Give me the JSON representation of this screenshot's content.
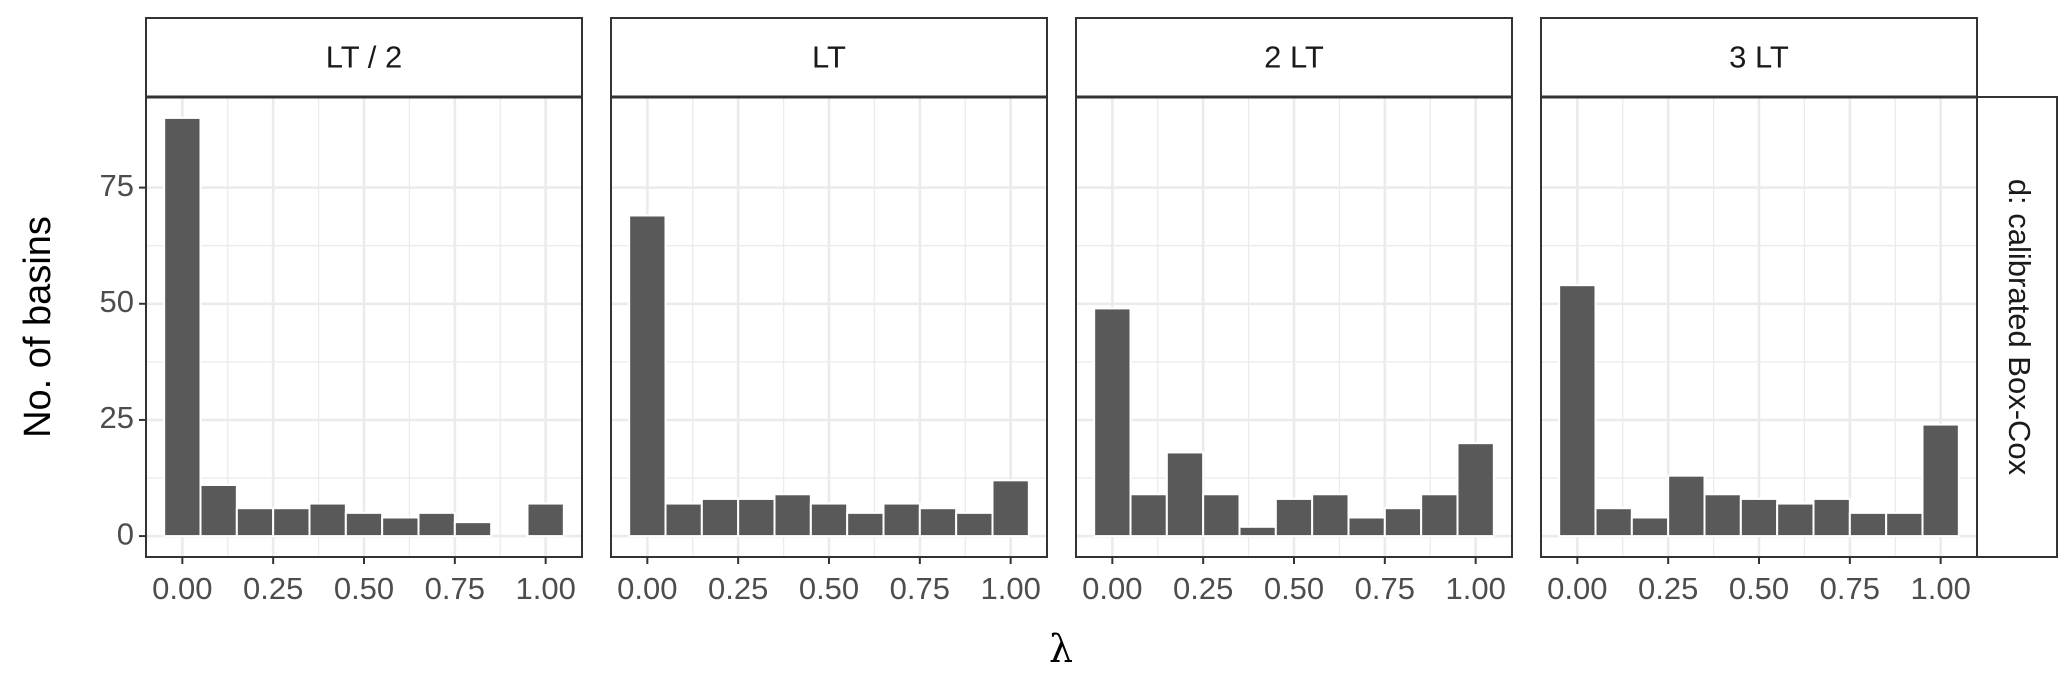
{
  "figure": {
    "ylabel": "No. of basins",
    "xlabel": "λ",
    "row_strip": "d: calibrated Box-Cox"
  },
  "chart_data": [
    {
      "type": "histogram",
      "title": "LT / 2",
      "bins": [
        -0.05,
        0.05,
        0.15,
        0.25,
        0.35,
        0.45,
        0.55,
        0.65,
        0.75,
        0.85,
        0.95,
        1.05
      ],
      "values": [
        90,
        11,
        6,
        6,
        7,
        5,
        4,
        5,
        3,
        0,
        7
      ],
      "color": "#595959",
      "xlim": [
        -0.1,
        1.1
      ],
      "ylim": [
        -4.5,
        94.5
      ],
      "xticks": [
        {
          "value": 0,
          "label": "0.00"
        },
        {
          "value": 0.25,
          "label": "0.25"
        },
        {
          "value": 0.5,
          "label": "0.50"
        },
        {
          "value": 0.75,
          "label": "0.75"
        },
        {
          "value": 1,
          "label": "1.00"
        }
      ],
      "yticks": [
        0,
        25,
        50,
        75
      ],
      "grid": true
    },
    {
      "type": "histogram",
      "title": "LT",
      "bins": [
        -0.05,
        0.05,
        0.15,
        0.25,
        0.35,
        0.45,
        0.55,
        0.65,
        0.75,
        0.85,
        0.95,
        1.05
      ],
      "values": [
        69,
        7,
        8,
        8,
        9,
        7,
        5,
        7,
        6,
        5,
        12
      ],
      "color": "#595959",
      "xlim": [
        -0.1,
        1.1
      ],
      "ylim": [
        -4.5,
        94.5
      ],
      "xticks": [
        {
          "value": 0,
          "label": "0.00"
        },
        {
          "value": 0.25,
          "label": "0.25"
        },
        {
          "value": 0.5,
          "label": "0.50"
        },
        {
          "value": 0.75,
          "label": "0.75"
        },
        {
          "value": 1,
          "label": "1.00"
        }
      ],
      "yticks": [
        0,
        25,
        50,
        75
      ],
      "grid": true
    },
    {
      "type": "histogram",
      "title": "2 LT",
      "bins": [
        -0.05,
        0.05,
        0.15,
        0.25,
        0.35,
        0.45,
        0.55,
        0.65,
        0.75,
        0.85,
        0.95,
        1.05
      ],
      "values": [
        49,
        9,
        18,
        9,
        2,
        8,
        9,
        4,
        6,
        9,
        20
      ],
      "color": "#595959",
      "xlim": [
        -0.1,
        1.1
      ],
      "ylim": [
        -4.5,
        94.5
      ],
      "xticks": [
        {
          "value": 0,
          "label": "0.00"
        },
        {
          "value": 0.25,
          "label": "0.25"
        },
        {
          "value": 0.5,
          "label": "0.50"
        },
        {
          "value": 0.75,
          "label": "0.75"
        },
        {
          "value": 1,
          "label": "1.00"
        }
      ],
      "yticks": [
        0,
        25,
        50,
        75
      ],
      "grid": true
    },
    {
      "type": "histogram",
      "title": "3 LT",
      "bins": [
        -0.05,
        0.05,
        0.15,
        0.25,
        0.35,
        0.45,
        0.55,
        0.65,
        0.75,
        0.85,
        0.95,
        1.05
      ],
      "values": [
        54,
        6,
        4,
        13,
        9,
        8,
        7,
        8,
        5,
        5,
        24
      ],
      "color": "#595959",
      "xlim": [
        -0.1,
        1.1
      ],
      "ylim": [
        -4.5,
        94.5
      ],
      "xticks": [
        {
          "value": 0,
          "label": "0.00"
        },
        {
          "value": 0.25,
          "label": "0.25"
        },
        {
          "value": 0.5,
          "label": "0.50"
        },
        {
          "value": 0.75,
          "label": "0.75"
        },
        {
          "value": 1,
          "label": "1.00"
        }
      ],
      "yticks": [
        0,
        25,
        50,
        75
      ],
      "grid": true
    }
  ]
}
